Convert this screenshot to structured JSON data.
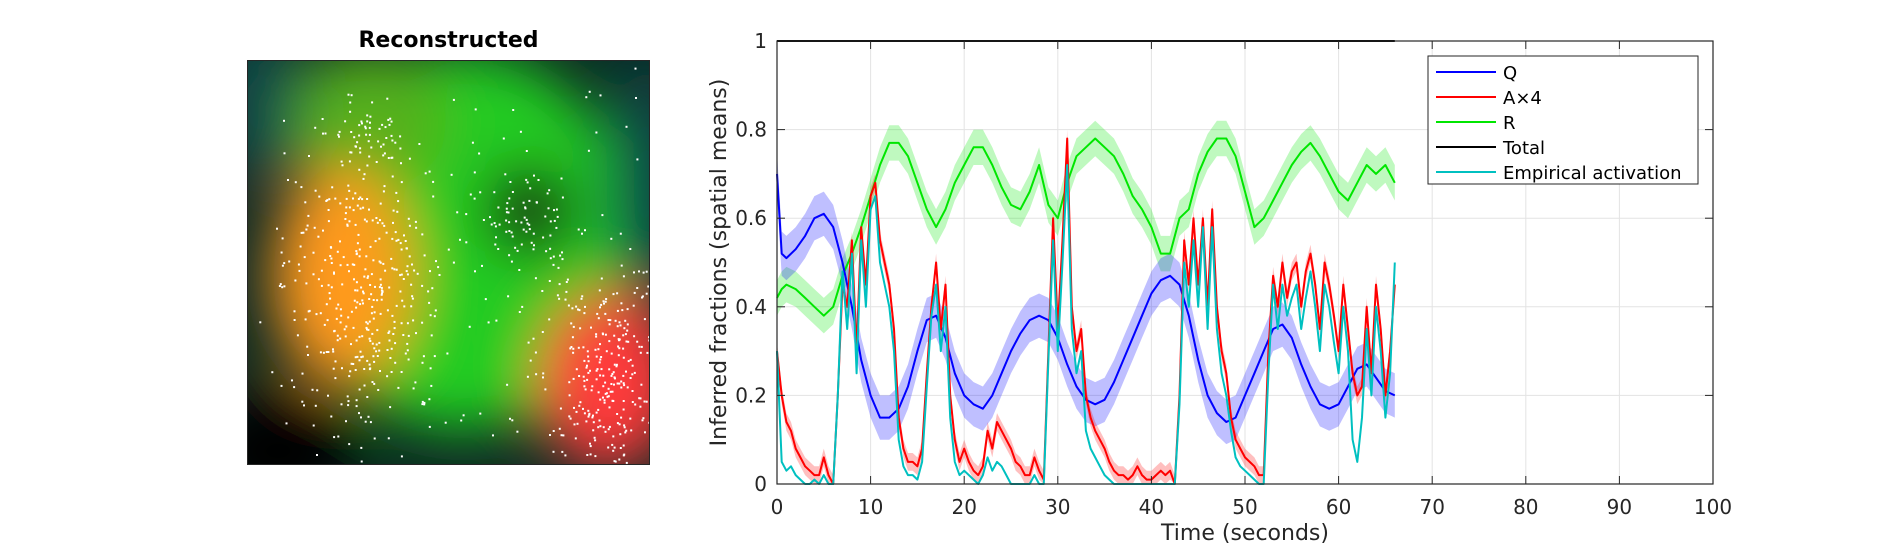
{
  "image_panel": {
    "title": "Reconstructed"
  },
  "colors": {
    "Q": "#0000ff",
    "A": "#ff0000",
    "R": "#00e600",
    "Total": "#000000",
    "Empirical": "#00c0c0",
    "background_dark": "#0d2a24",
    "field_green": "#22cc22",
    "field_orange": "#ff9a1a",
    "field_red": "#ff3b3b",
    "points": "#ffffff"
  },
  "chart_data": {
    "type": "line",
    "xlabel": "Time (seconds)",
    "ylabel": "Inferred fractions (spatial means)",
    "xlim": [
      0,
      100
    ],
    "ylim": [
      0,
      1
    ],
    "xticks": [
      0,
      10,
      20,
      30,
      40,
      50,
      60,
      70,
      80,
      90,
      100
    ],
    "yticks": [
      0,
      0.2,
      0.4,
      0.6,
      0.8,
      1
    ],
    "grid": true,
    "legend_placement": "top-right",
    "series": [
      {
        "name": "Q",
        "color": "#0000ff",
        "band": 0.05,
        "x": [
          0,
          0.5,
          1,
          2,
          3,
          4,
          5,
          6,
          7,
          8,
          9,
          10,
          11,
          12,
          13,
          14,
          15,
          16,
          17,
          18,
          19,
          20,
          21,
          22,
          23,
          24,
          25,
          26,
          27,
          28,
          29,
          30,
          31,
          32,
          33,
          34,
          35,
          36,
          37,
          38,
          39,
          40,
          41,
          42,
          43,
          44,
          45,
          46,
          47,
          48,
          49,
          50,
          51,
          52,
          53,
          54,
          55,
          56,
          57,
          58,
          59,
          60,
          61,
          62,
          63,
          64,
          65,
          66
        ],
        "y": [
          0.7,
          0.52,
          0.51,
          0.53,
          0.56,
          0.6,
          0.61,
          0.58,
          0.5,
          0.4,
          0.28,
          0.2,
          0.15,
          0.15,
          0.17,
          0.22,
          0.3,
          0.37,
          0.38,
          0.33,
          0.25,
          0.2,
          0.18,
          0.17,
          0.2,
          0.25,
          0.3,
          0.34,
          0.37,
          0.38,
          0.37,
          0.33,
          0.27,
          0.22,
          0.19,
          0.18,
          0.19,
          0.23,
          0.28,
          0.33,
          0.38,
          0.43,
          0.46,
          0.47,
          0.45,
          0.38,
          0.28,
          0.2,
          0.16,
          0.14,
          0.15,
          0.2,
          0.25,
          0.3,
          0.35,
          0.36,
          0.33,
          0.27,
          0.22,
          0.18,
          0.17,
          0.18,
          0.22,
          0.26,
          0.27,
          0.24,
          0.21,
          0.2
        ]
      },
      {
        "name": "A×4",
        "color": "#ff0000",
        "band": 0.02,
        "x": [
          0,
          0.5,
          1,
          1.5,
          2,
          2.5,
          3,
          3.5,
          4,
          4.5,
          5,
          5.5,
          6,
          6.5,
          7,
          7.5,
          8,
          8.5,
          9,
          9.5,
          10,
          10.5,
          11,
          11.5,
          12,
          12.5,
          13,
          13.5,
          14,
          14.5,
          15,
          15.5,
          16,
          16.5,
          17,
          17.5,
          18,
          18.5,
          19,
          19.5,
          20,
          20.5,
          21,
          21.5,
          22,
          22.5,
          23,
          23.5,
          24,
          24.5,
          25,
          25.5,
          26,
          26.5,
          27,
          27.5,
          28,
          28.5,
          29,
          29.5,
          30,
          30.5,
          31,
          31.5,
          32,
          32.5,
          33,
          33.5,
          34,
          34.5,
          35,
          35.5,
          36,
          36.5,
          37,
          37.5,
          38,
          38.5,
          39,
          39.5,
          40,
          40.5,
          41,
          41.5,
          42,
          42.5,
          43,
          43.5,
          44,
          44.5,
          45,
          45.5,
          46,
          46.5,
          47,
          47.5,
          48,
          48.5,
          49,
          49.5,
          50,
          50.5,
          51,
          51.5,
          52,
          52.5,
          53,
          53.5,
          54,
          54.5,
          55,
          55.5,
          56,
          56.5,
          57,
          57.5,
          58,
          58.5,
          59,
          59.5,
          60,
          60.5,
          61,
          61.5,
          62,
          62.5,
          63,
          63.5,
          64,
          64.5,
          65,
          65.5,
          66
        ],
        "y": [
          0.3,
          0.2,
          0.14,
          0.12,
          0.08,
          0.06,
          0.04,
          0.03,
          0.02,
          0.02,
          0.06,
          0.02,
          0.0,
          0.2,
          0.45,
          0.4,
          0.55,
          0.3,
          0.58,
          0.45,
          0.65,
          0.68,
          0.55,
          0.5,
          0.45,
          0.35,
          0.15,
          0.08,
          0.05,
          0.05,
          0.04,
          0.08,
          0.25,
          0.4,
          0.5,
          0.35,
          0.45,
          0.2,
          0.1,
          0.05,
          0.08,
          0.05,
          0.03,
          0.02,
          0.04,
          0.12,
          0.08,
          0.14,
          0.12,
          0.1,
          0.08,
          0.05,
          0.04,
          0.02,
          0.02,
          0.06,
          0.03,
          0.01,
          0.3,
          0.6,
          0.35,
          0.55,
          0.78,
          0.4,
          0.3,
          0.35,
          0.2,
          0.15,
          0.12,
          0.1,
          0.08,
          0.05,
          0.03,
          0.02,
          0.02,
          0.01,
          0.02,
          0.04,
          0.02,
          0.01,
          0.01,
          0.02,
          0.03,
          0.02,
          0.03,
          0.0,
          0.2,
          0.55,
          0.45,
          0.6,
          0.45,
          0.6,
          0.4,
          0.62,
          0.4,
          0.3,
          0.25,
          0.15,
          0.1,
          0.08,
          0.06,
          0.05,
          0.04,
          0.02,
          0.02,
          0.3,
          0.47,
          0.4,
          0.5,
          0.42,
          0.48,
          0.5,
          0.4,
          0.48,
          0.52,
          0.45,
          0.35,
          0.5,
          0.45,
          0.38,
          0.3,
          0.45,
          0.35,
          0.25,
          0.2,
          0.22,
          0.4,
          0.25,
          0.45,
          0.35,
          0.2,
          0.3,
          0.45
        ]
      },
      {
        "name": "R",
        "color": "#00e600",
        "band": 0.04,
        "x": [
          0,
          0.5,
          1,
          2,
          3,
          4,
          5,
          6,
          7,
          8,
          9,
          10,
          11,
          12,
          13,
          14,
          15,
          16,
          17,
          18,
          19,
          20,
          21,
          22,
          23,
          24,
          25,
          26,
          27,
          28,
          29,
          30,
          31,
          32,
          33,
          34,
          35,
          36,
          37,
          38,
          39,
          40,
          41,
          42,
          43,
          44,
          45,
          46,
          47,
          48,
          49,
          50,
          51,
          52,
          53,
          54,
          55,
          56,
          57,
          58,
          59,
          60,
          61,
          62,
          63,
          64,
          65,
          66
        ],
        "y": [
          0.42,
          0.44,
          0.45,
          0.44,
          0.42,
          0.4,
          0.38,
          0.4,
          0.47,
          0.52,
          0.58,
          0.65,
          0.72,
          0.77,
          0.77,
          0.74,
          0.68,
          0.62,
          0.58,
          0.62,
          0.68,
          0.72,
          0.76,
          0.76,
          0.72,
          0.67,
          0.63,
          0.62,
          0.66,
          0.72,
          0.63,
          0.6,
          0.68,
          0.74,
          0.76,
          0.78,
          0.76,
          0.74,
          0.7,
          0.65,
          0.62,
          0.58,
          0.52,
          0.52,
          0.6,
          0.62,
          0.7,
          0.75,
          0.78,
          0.78,
          0.74,
          0.66,
          0.58,
          0.6,
          0.64,
          0.68,
          0.72,
          0.75,
          0.77,
          0.74,
          0.7,
          0.66,
          0.64,
          0.68,
          0.72,
          0.7,
          0.72,
          0.68
        ]
      },
      {
        "name": "Total",
        "color": "#000000",
        "band": 0,
        "x": [
          0,
          66
        ],
        "y": [
          1,
          1
        ]
      },
      {
        "name": "Empirical activation",
        "color": "#00c0c0",
        "band": 0,
        "x": [
          0,
          0.5,
          1,
          1.5,
          2,
          2.5,
          3,
          3.5,
          4,
          4.5,
          5,
          5.5,
          6,
          6.5,
          7,
          7.5,
          8,
          8.5,
          9,
          9.5,
          10,
          10.5,
          11,
          11.5,
          12,
          12.5,
          13,
          13.5,
          14,
          14.5,
          15,
          15.5,
          16,
          16.5,
          17,
          17.5,
          18,
          18.5,
          19,
          19.5,
          20,
          20.5,
          21,
          21.5,
          22,
          22.5,
          23,
          23.5,
          24,
          24.5,
          25,
          25.5,
          26,
          26.5,
          27,
          27.5,
          28,
          28.5,
          29,
          29.5,
          30,
          30.5,
          31,
          31.5,
          32,
          32.5,
          33,
          33.5,
          34,
          34.5,
          35,
          35.5,
          36,
          36.5,
          37,
          37.5,
          38,
          38.5,
          39,
          39.5,
          40,
          40.5,
          41,
          41.5,
          42,
          42.5,
          43,
          43.5,
          44,
          44.5,
          45,
          45.5,
          46,
          46.5,
          47,
          47.5,
          48,
          48.5,
          49,
          49.5,
          50,
          50.5,
          51,
          51.5,
          52,
          52.5,
          53,
          53.5,
          54,
          54.5,
          55,
          55.5,
          56,
          56.5,
          57,
          57.5,
          58,
          58.5,
          59,
          59.5,
          60,
          60.5,
          61,
          61.5,
          62,
          62.5,
          63,
          63.5,
          64,
          64.5,
          65,
          65.5,
          66
        ],
        "y": [
          0.3,
          0.05,
          0.03,
          0.04,
          0.02,
          0.01,
          0.0,
          0.0,
          0.01,
          0.0,
          0.02,
          0.0,
          0.0,
          0.2,
          0.48,
          0.35,
          0.52,
          0.25,
          0.55,
          0.4,
          0.62,
          0.65,
          0.5,
          0.45,
          0.4,
          0.3,
          0.1,
          0.04,
          0.02,
          0.02,
          0.01,
          0.05,
          0.22,
          0.38,
          0.45,
          0.3,
          0.4,
          0.15,
          0.05,
          0.02,
          0.03,
          0.02,
          0.01,
          0.0,
          0.02,
          0.06,
          0.03,
          0.05,
          0.04,
          0.02,
          0.0,
          0.0,
          0.0,
          0.0,
          0.0,
          0.02,
          0.0,
          0.0,
          0.28,
          0.55,
          0.3,
          0.5,
          0.72,
          0.35,
          0.25,
          0.3,
          0.12,
          0.08,
          0.06,
          0.04,
          0.02,
          0.01,
          0.0,
          0.0,
          0.0,
          0.0,
          0.0,
          0.0,
          0.0,
          0.0,
          0.0,
          0.0,
          0.0,
          0.0,
          0.0,
          0.0,
          0.18,
          0.5,
          0.4,
          0.55,
          0.4,
          0.58,
          0.35,
          0.58,
          0.35,
          0.25,
          0.2,
          0.12,
          0.06,
          0.04,
          0.03,
          0.02,
          0.01,
          0.0,
          0.0,
          0.25,
          0.45,
          0.35,
          0.45,
          0.38,
          0.42,
          0.45,
          0.35,
          0.42,
          0.48,
          0.4,
          0.3,
          0.45,
          0.4,
          0.32,
          0.25,
          0.4,
          0.3,
          0.1,
          0.05,
          0.15,
          0.35,
          0.2,
          0.4,
          0.3,
          0.15,
          0.25,
          0.5
        ]
      }
    ]
  }
}
